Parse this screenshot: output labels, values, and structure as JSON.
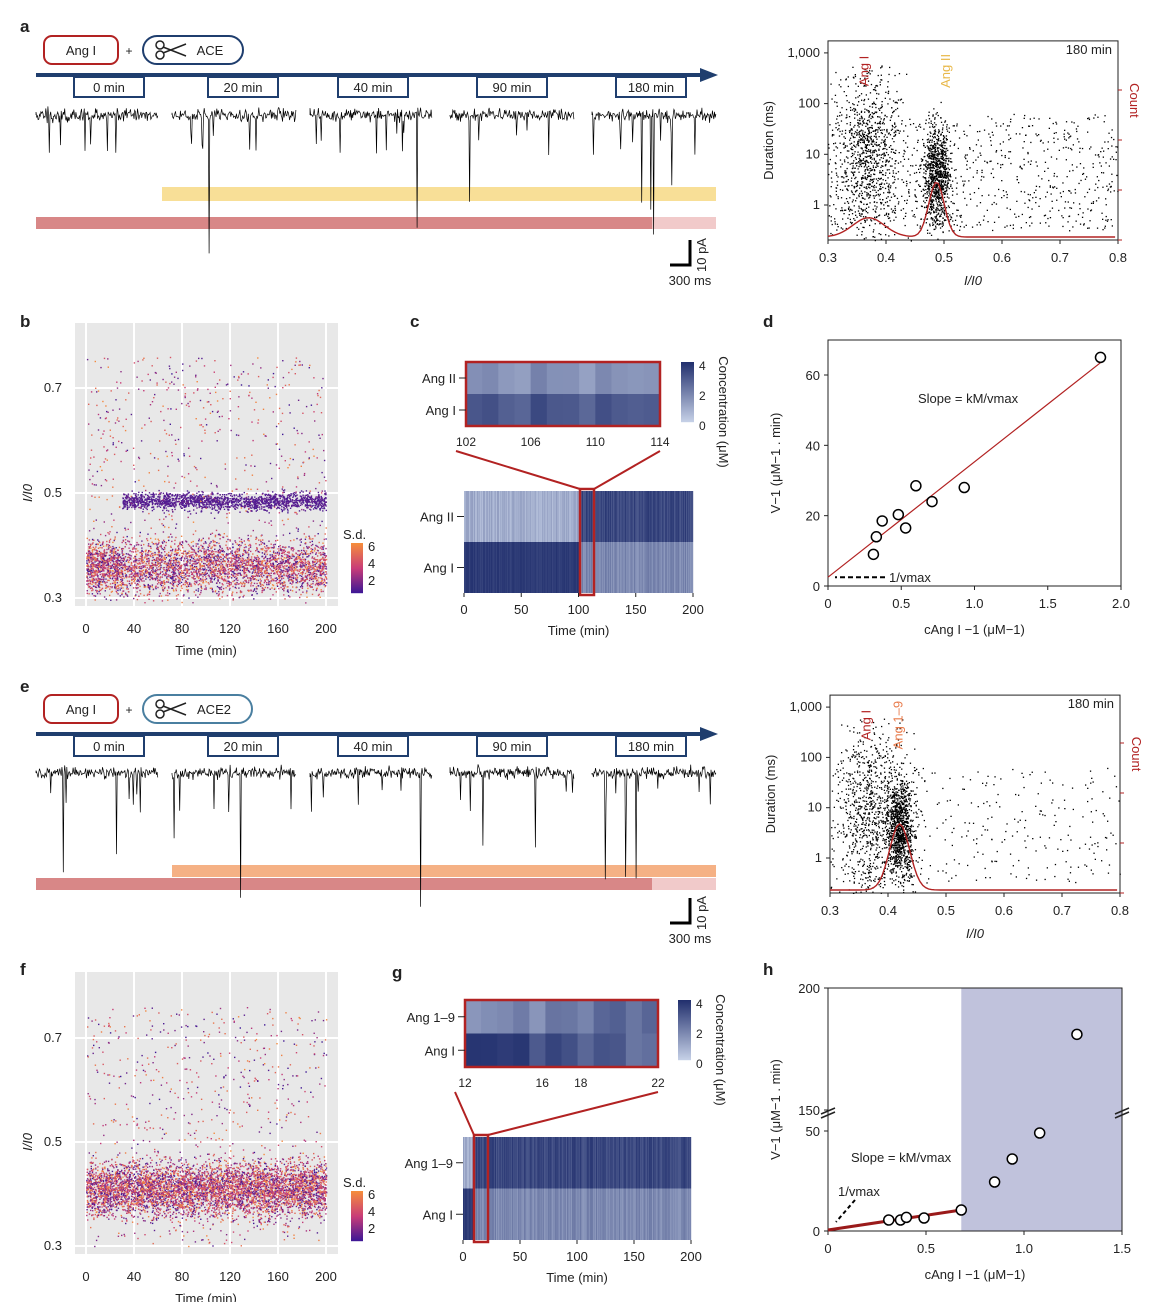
{
  "panel_labels": {
    "a": "a",
    "b": "b",
    "c": "c",
    "d": "d",
    "e": "e",
    "f": "f",
    "g": "g",
    "h": "h"
  },
  "colors": {
    "trace": "#000000",
    "arrow": "#1f3e6e",
    "red": "#b22222",
    "ang_i_bar": "#d47a7a",
    "ang_ii_bar": "#f7dc8c",
    "ang19_bar": "#f4a878",
    "pink": "#efc4c4",
    "shade": "#c0c2dc",
    "heat_dark": "#22306e",
    "heat_light": "#c7d2e8"
  },
  "schematic_a": {
    "substrate": "Ang I",
    "plus": "+",
    "enzyme": "ACE",
    "icon": "scissors-icon",
    "times": [
      "0 min",
      "20 min",
      "40 min",
      "90 min",
      "180 min"
    ],
    "scale_current": "10 pA",
    "scale_time": "300 ms"
  },
  "schematic_e": {
    "substrate": "Ang I",
    "plus": "+",
    "enzyme": "ACE2",
    "icon": "scissors-icon",
    "times": [
      "0 min",
      "20 min",
      "40 min",
      "90 min",
      "180 min"
    ],
    "scale_current": "10 pA",
    "scale_time": "300 ms"
  },
  "chart_data": [
    {
      "id": "a-scatter",
      "type": "scatter",
      "annotation": "180 min",
      "xlabel": "I/I0",
      "ylabel": "Duration (ms)",
      "y2label": "Count",
      "xlim": [
        0.3,
        0.8
      ],
      "ylog": true,
      "ylim": [
        0.2,
        1000
      ],
      "xticks": [
        "0.3",
        "0.4",
        "0.5",
        "0.6",
        "0.7",
        "0.8"
      ],
      "yticks": [
        "1",
        "10",
        "100",
        "1,000"
      ],
      "labels": [
        "Ang I",
        "Ang II"
      ],
      "clusters": [
        {
          "name": "Ang I",
          "x": 0.37
        },
        {
          "name": "Ang II",
          "x": 0.48
        }
      ]
    },
    {
      "id": "b-scatter",
      "type": "scatter",
      "xlabel": "Time (min)",
      "ylabel": "I/I0",
      "xlim": [
        -10,
        210
      ],
      "ylim": [
        0.28,
        0.78
      ],
      "xticks": [
        "0",
        "40",
        "80",
        "120",
        "160",
        "200"
      ],
      "yticks": [
        "0.3",
        "0.5",
        "0.7"
      ],
      "colorbar": {
        "title": "S.d.",
        "ticks": [
          "6",
          "4",
          "2"
        ]
      },
      "bands": [
        {
          "y": 0.48,
          "from": 30,
          "to": 200
        },
        {
          "y": 0.36,
          "from": 0,
          "to": 200
        }
      ]
    },
    {
      "id": "c-heatmap",
      "type": "heatmap",
      "rows": [
        "Ang II",
        "Ang I"
      ],
      "xlabel": "Time (min)",
      "xticks": [
        "0",
        "50",
        "100",
        "150",
        "200"
      ],
      "zoom_xticks": [
        "102",
        "106",
        "110",
        "114"
      ],
      "colorbar": {
        "title": "Concentration (μM)",
        "ticks": [
          "4",
          "2",
          "0"
        ]
      },
      "switch_time": 100
    },
    {
      "id": "d-scatter",
      "type": "scatter",
      "xlabel": "cAng I −1 (μM−1)",
      "ylabel": "V−1 (μM−1 . min)",
      "xlim": [
        0,
        2.0
      ],
      "ylim": [
        0,
        70
      ],
      "xticks": [
        "0",
        "0.5",
        "1.0",
        "1.5",
        "2.0"
      ],
      "yticks": [
        "0",
        "20",
        "40",
        "60"
      ],
      "annotation": "Slope = kM/vmax",
      "intercept_label": "1/vmax",
      "x": [
        0.31,
        0.33,
        0.37,
        0.48,
        0.53,
        0.6,
        0.71,
        0.93,
        1.86
      ],
      "y": [
        9,
        14,
        18.5,
        20.3,
        16.5,
        28.5,
        24,
        28,
        65
      ],
      "fit": {
        "intercept": 2.5,
        "slope": 32.8
      }
    },
    {
      "id": "e-scatter",
      "type": "scatter",
      "annotation": "180 min",
      "xlabel": "I/I0",
      "ylabel": "Duration (ms)",
      "y2label": "Count",
      "xlim": [
        0.3,
        0.8
      ],
      "ylog": true,
      "ylim": [
        0.2,
        1000
      ],
      "xticks": [
        "0.3",
        "0.4",
        "0.5",
        "0.6",
        "0.7",
        "0.8"
      ],
      "yticks": [
        "1",
        "10",
        "100",
        "1,000"
      ],
      "labels": [
        "Ang I",
        "Ang 1–9"
      ],
      "clusters": [
        {
          "name": "Ang I",
          "x": 0.37
        },
        {
          "name": "Ang 1–9",
          "x": 0.42
        }
      ]
    },
    {
      "id": "f-scatter",
      "type": "scatter",
      "xlabel": "Time (min)",
      "ylabel": "I/I0",
      "xlim": [
        -10,
        210
      ],
      "ylim": [
        0.28,
        0.78
      ],
      "xticks": [
        "0",
        "40",
        "80",
        "120",
        "160",
        "200"
      ],
      "yticks": [
        "0.3",
        "0.5",
        "0.7"
      ],
      "colorbar": {
        "title": "S.d.",
        "ticks": [
          "6",
          "4",
          "2"
        ]
      },
      "bands": [
        {
          "y": 0.41,
          "from": 0,
          "to": 200
        }
      ]
    },
    {
      "id": "g-heatmap",
      "type": "heatmap",
      "rows": [
        "Ang 1–9",
        "Ang I"
      ],
      "xlabel": "Time (min)",
      "xticks": [
        "0",
        "50",
        "100",
        "150",
        "200"
      ],
      "zoom_xticks": [
        "12",
        "16",
        "18",
        "22"
      ],
      "colorbar": {
        "title": "Concentration (μM)",
        "ticks": [
          "4",
          "2",
          "0"
        ]
      },
      "switch_time": 10
    },
    {
      "id": "h-scatter",
      "type": "scatter",
      "xlabel": "cAng I −1 (μM−1)",
      "ylabel": "V−1 (μM−1 . min)",
      "xlim": [
        0,
        1.5
      ],
      "ylim": [
        0,
        200
      ],
      "axis_break": [
        50,
        150
      ],
      "xticks": [
        "0",
        "0.5",
        "1.0",
        "1.5"
      ],
      "yticks": [
        "0",
        "50",
        "150",
        "200"
      ],
      "annotation": "Slope = kM/vmax",
      "intercept_label": "1/vmax",
      "shaded_from": 0.68,
      "x": [
        0.31,
        0.37,
        0.4,
        0.49,
        0.68,
        0.85,
        0.94,
        1.08,
        1.27
      ],
      "y": [
        5.5,
        5.5,
        6.8,
        6.5,
        10.5,
        24.5,
        36,
        49,
        181
      ],
      "fit": {
        "intercept": 0.5,
        "slope": 14.7
      }
    }
  ]
}
